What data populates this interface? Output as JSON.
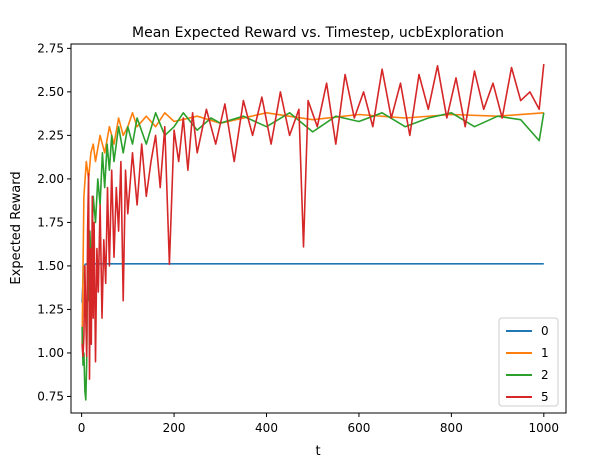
{
  "chart_data": {
    "type": "line",
    "title": "Mean Expected Reward vs. Timestep, ucbExploration",
    "xlabel": "t",
    "ylabel": "Expected Reward",
    "xlim": [
      -23,
      1048
    ],
    "ylim": [
      0.655,
      2.775
    ],
    "xticks": [
      0,
      200,
      400,
      600,
      800,
      1000
    ],
    "yticks": [
      0.75,
      1.0,
      1.25,
      1.5,
      1.75,
      2.0,
      2.25,
      2.5,
      2.75
    ],
    "ytick_labels": [
      "0.75",
      "1.00",
      "1.25",
      "1.50",
      "1.75",
      "2.00",
      "2.25",
      "2.50",
      "2.75"
    ],
    "grid": false,
    "legend_position": "lower right",
    "series": [
      {
        "name": "0",
        "color": "#1f77b4",
        "x": [
          1,
          4,
          8,
          15,
          30,
          60,
          100,
          200,
          400,
          600,
          800,
          1000
        ],
        "y": [
          1.29,
          1.49,
          1.51,
          1.512,
          1.512,
          1.512,
          1.512,
          1.512,
          1.512,
          1.512,
          1.512,
          1.512
        ]
      },
      {
        "name": "1",
        "color": "#ff7f0e",
        "x": [
          1,
          5,
          10,
          15,
          20,
          25,
          30,
          40,
          50,
          60,
          70,
          80,
          90,
          100,
          110,
          120,
          140,
          160,
          180,
          200,
          250,
          300,
          400,
          500,
          600,
          700,
          800,
          900,
          1000
        ],
        "y": [
          1.05,
          1.9,
          2.1,
          2.0,
          2.15,
          2.2,
          2.1,
          2.25,
          2.15,
          2.3,
          2.2,
          2.35,
          2.25,
          2.3,
          2.38,
          2.3,
          2.36,
          2.3,
          2.38,
          2.33,
          2.36,
          2.32,
          2.38,
          2.34,
          2.37,
          2.35,
          2.37,
          2.36,
          2.38
        ]
      },
      {
        "name": "2",
        "color": "#2ca02c",
        "x": [
          1,
          3,
          5,
          7,
          9,
          11,
          13,
          15,
          18,
          21,
          25,
          30,
          35,
          40,
          45,
          50,
          55,
          60,
          65,
          70,
          80,
          90,
          100,
          110,
          120,
          140,
          160,
          180,
          200,
          220,
          250,
          280,
          300,
          350,
          400,
          450,
          500,
          550,
          600,
          650,
          700,
          750,
          800,
          850,
          900,
          950,
          990,
          1000
        ],
        "y": [
          1.15,
          0.93,
          1.0,
          0.78,
          0.73,
          0.95,
          1.5,
          1.3,
          1.7,
          1.45,
          1.9,
          1.75,
          2.0,
          1.85,
          2.15,
          1.95,
          2.2,
          2.05,
          2.25,
          2.1,
          2.3,
          2.15,
          2.3,
          2.2,
          2.35,
          2.2,
          2.38,
          2.25,
          2.3,
          2.38,
          2.28,
          2.35,
          2.32,
          2.36,
          2.3,
          2.38,
          2.27,
          2.36,
          2.33,
          2.38,
          2.3,
          2.35,
          2.38,
          2.3,
          2.36,
          2.34,
          2.22,
          2.38
        ]
      },
      {
        "name": "5",
        "color": "#d62728",
        "x": [
          1,
          3,
          5,
          7,
          9,
          11,
          13,
          15,
          17,
          19,
          21,
          23,
          25,
          27,
          30,
          33,
          36,
          40,
          44,
          48,
          52,
          56,
          60,
          65,
          70,
          75,
          80,
          85,
          90,
          95,
          100,
          110,
          120,
          130,
          140,
          150,
          160,
          170,
          180,
          190,
          200,
          210,
          220,
          230,
          240,
          250,
          270,
          290,
          310,
          330,
          350,
          370,
          390,
          410,
          430,
          450,
          470,
          480,
          490,
          510,
          530,
          550,
          570,
          590,
          610,
          630,
          650,
          670,
          690,
          710,
          730,
          750,
          770,
          790,
          810,
          830,
          850,
          870,
          890,
          910,
          930,
          950,
          970,
          990,
          1000
        ],
        "y": [
          1.05,
          0.98,
          1.1,
          1.5,
          1.2,
          0.98,
          1.7,
          2.03,
          0.85,
          1.6,
          1.05,
          1.9,
          1.2,
          1.75,
          0.95,
          1.6,
          1.35,
          1.85,
          1.2,
          1.65,
          1.4,
          1.95,
          1.5,
          2.05,
          1.55,
          1.95,
          1.7,
          2.1,
          1.3,
          2.05,
          1.8,
          2.15,
          1.85,
          2.2,
          1.9,
          2.1,
          2.25,
          1.95,
          2.3,
          1.51,
          2.28,
          2.1,
          2.35,
          2.05,
          2.38,
          2.15,
          2.4,
          2.2,
          2.43,
          2.1,
          2.45,
          2.25,
          2.47,
          2.2,
          2.5,
          2.25,
          2.4,
          1.61,
          2.45,
          2.3,
          2.55,
          2.2,
          2.6,
          2.35,
          2.5,
          2.3,
          2.63,
          2.35,
          2.55,
          2.25,
          2.6,
          2.4,
          2.65,
          2.35,
          2.58,
          2.3,
          2.62,
          2.4,
          2.55,
          2.35,
          2.64,
          2.45,
          2.5,
          2.4,
          2.66
        ]
      }
    ]
  }
}
